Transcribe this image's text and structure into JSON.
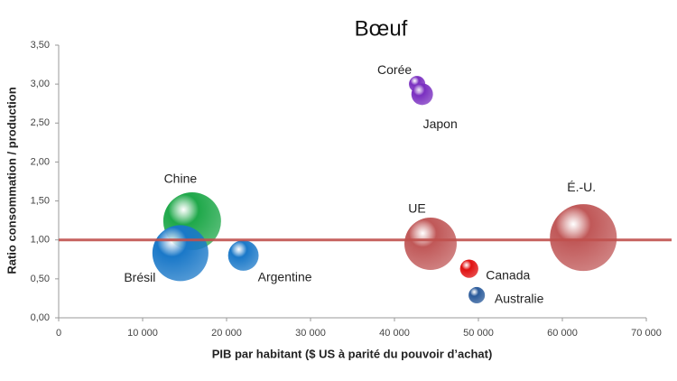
{
  "chart_data": {
    "type": "bubble",
    "title": "Bœuf",
    "x_label": "PIB par habitant ($ US à parité du pouvoir d’achat)",
    "y_label": "Ratio consommation / production",
    "labels": [
      "Corée",
      "Japon",
      "Chine",
      "Brésil",
      "Argentine",
      "UE",
      "É.-U.",
      "Canada",
      "Australie"
    ],
    "x": [
      42700,
      43300,
      15900,
      14500,
      22000,
      44300,
      62500,
      48900,
      49800
    ],
    "values": [
      3.0,
      2.87,
      1.24,
      0.83,
      0.8,
      0.95,
      1.03,
      0.63,
      0.29
    ],
    "sizes": [
      8,
      14,
      100,
      94,
      28,
      82,
      134,
      10,
      8
    ],
    "colors": [
      "#7a2fc0",
      "#7a2fc0",
      "#1fa84a",
      "#1a78c8",
      "#1a78c8",
      "#c05858",
      "#c05858",
      "#e01010",
      "#2a5a9a"
    ],
    "reference_line": 1,
    "reference_color": "#c0504d",
    "xlim": [
      0,
      70000
    ],
    "xticks": [
      0,
      {
        "value": 10000,
        "label": "10 000"
      },
      {
        "value": 20000,
        "label": "20 000"
      },
      {
        "value": 30000,
        "label": "30 000"
      },
      {
        "value": 40000,
        "label": "40 000"
      },
      {
        "value": 50000,
        "label": "50 000"
      },
      {
        "value": 60000,
        "label": "60 000"
      },
      {
        "value": 70000,
        "label": "70 000"
      }
    ],
    "ylim": [
      0,
      3.5
    ],
    "yticks": [
      {
        "value": 0,
        "label": "0,00"
      },
      {
        "value": 0.5,
        "label": "0,50"
      },
      {
        "value": 1,
        "label": "1,00"
      },
      {
        "value": 1.5,
        "label": "1,50"
      },
      {
        "value": 2,
        "label": "2,00"
      },
      {
        "value": 2.5,
        "label": "2,50"
      },
      {
        "value": 3,
        "label": "3,00"
      },
      {
        "value": 3.5,
        "label": "3,50"
      }
    ]
  }
}
